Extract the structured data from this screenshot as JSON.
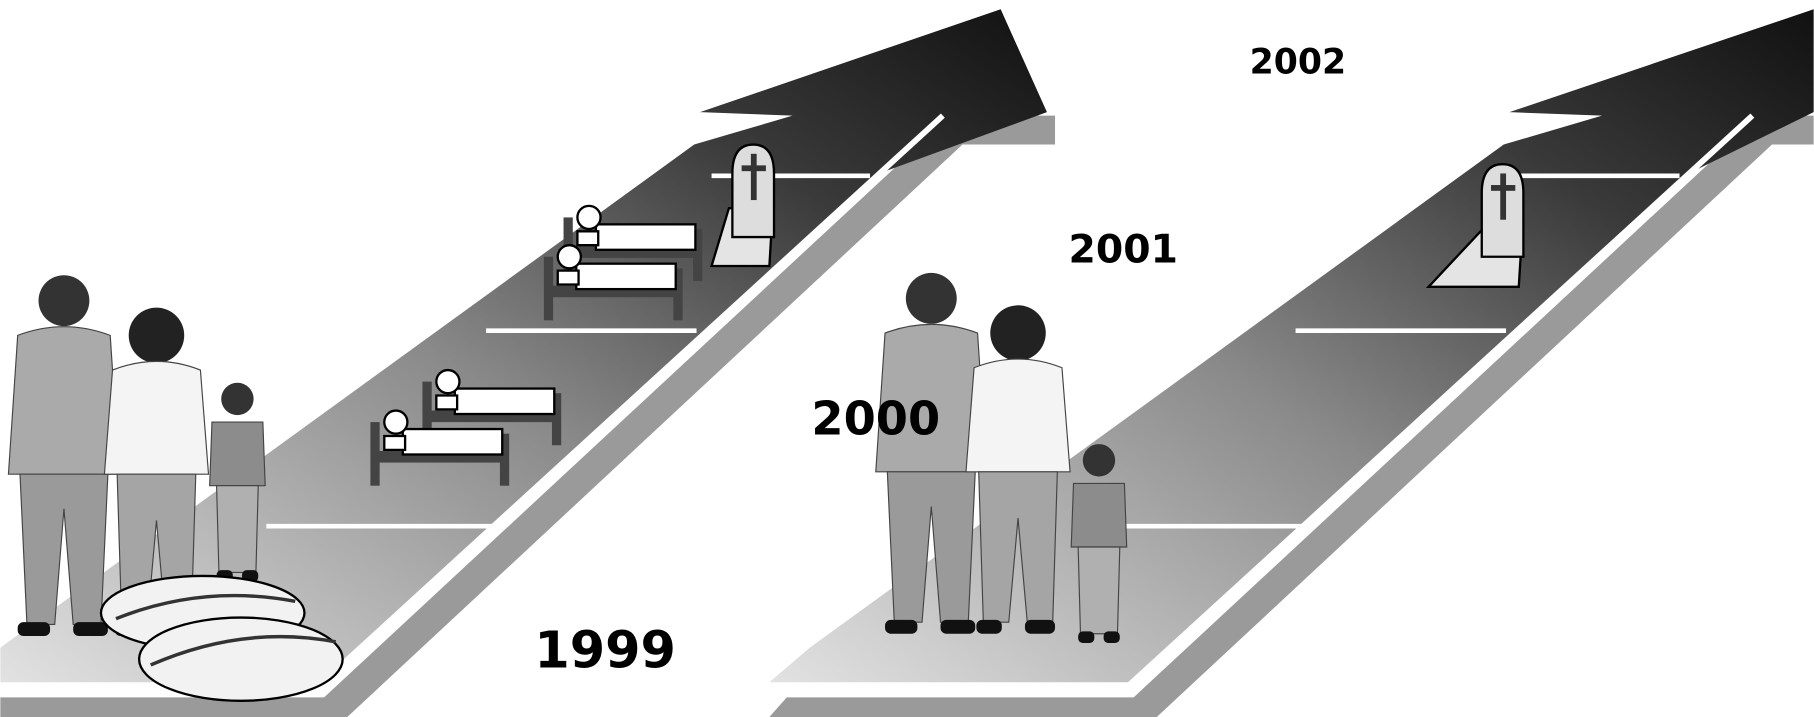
{
  "labels": [
    "1999",
    "2000",
    "2001",
    "2002"
  ]
}
